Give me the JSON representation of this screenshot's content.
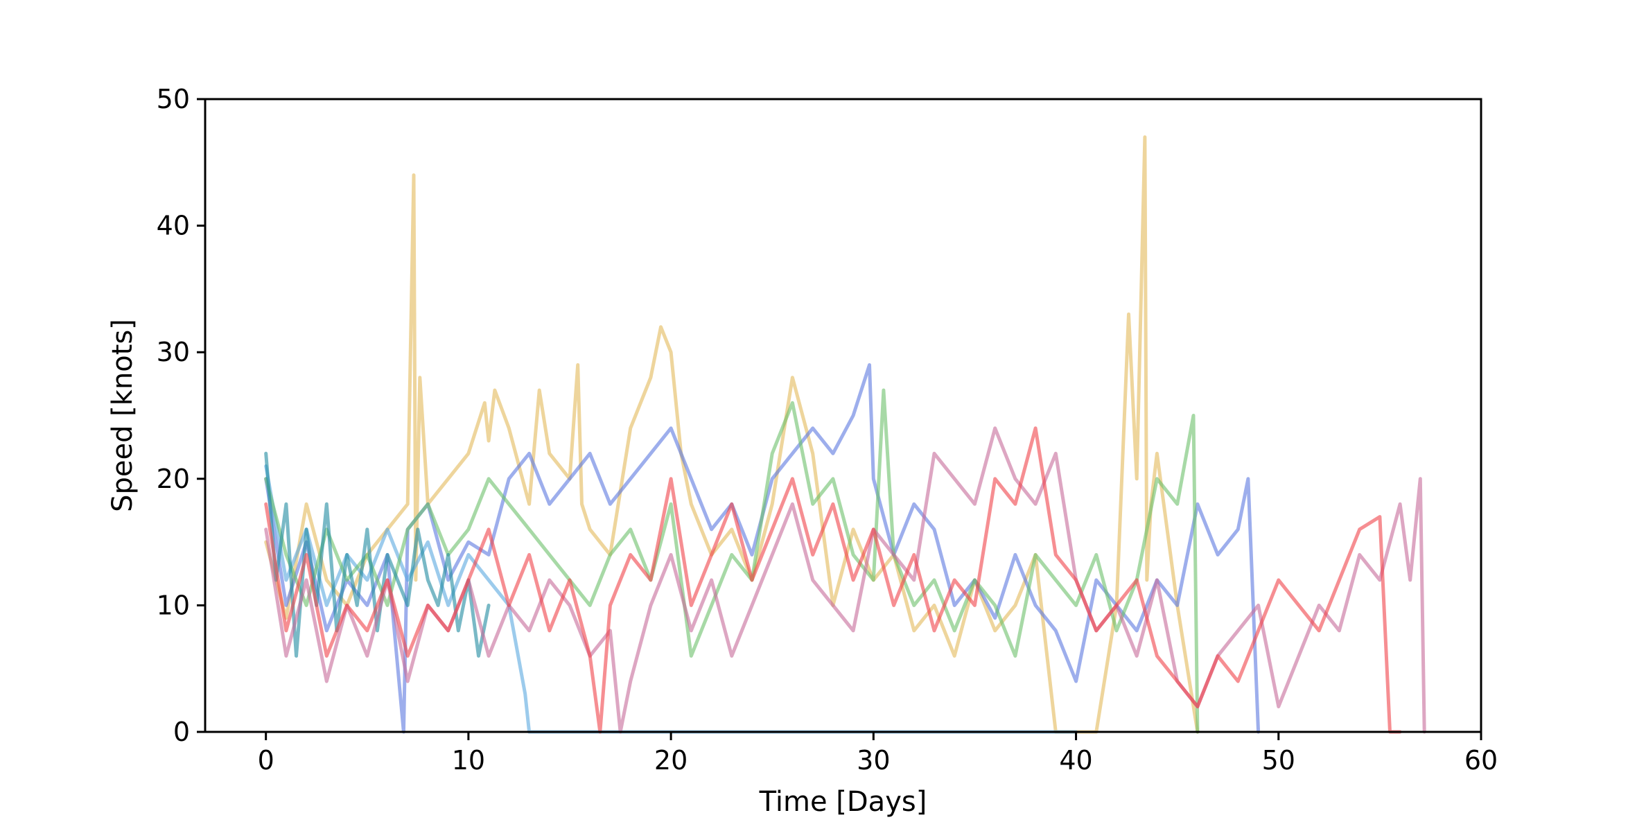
{
  "chart_data": {
    "type": "line",
    "title": "",
    "xlabel": "Time [Days]",
    "ylabel": "Speed [knots]",
    "xlim": [
      -3,
      60
    ],
    "ylim": [
      0,
      50
    ],
    "xticks": [
      0,
      10,
      20,
      30,
      40,
      50,
      60
    ],
    "yticks": [
      0,
      10,
      20,
      30,
      40,
      50
    ],
    "xtick_labels": [
      "0",
      "10",
      "20",
      "30",
      "40",
      "50",
      "60"
    ],
    "ytick_labels": [
      "0",
      "10",
      "20",
      "30",
      "40",
      "50"
    ],
    "grid": false,
    "legend": "none",
    "series": [
      {
        "color": "#e3b95a",
        "x": [
          0,
          1,
          2,
          3,
          4,
          5,
          6,
          7,
          7.3,
          7.4,
          7.6,
          8,
          9,
          10,
          10.8,
          11,
          11.3,
          12,
          13,
          13.5,
          14,
          15,
          15.4,
          15.6,
          16,
          17,
          18,
          19,
          19.5,
          20,
          20.5,
          21,
          22,
          23,
          24,
          25,
          26,
          27,
          28,
          29,
          30,
          31,
          32,
          33,
          34,
          35,
          36,
          37,
          38,
          39,
          40,
          41,
          42,
          42.6,
          43,
          43.4,
          43.5,
          43.7,
          44,
          45,
          46
        ],
        "y": [
          15,
          9,
          18,
          12,
          10,
          14,
          16,
          18,
          44,
          12,
          28,
          18,
          20,
          22,
          26,
          23,
          27,
          24,
          18,
          27,
          22,
          20,
          29,
          18,
          16,
          14,
          24,
          28,
          32,
          30,
          22,
          18,
          14,
          16,
          12,
          18,
          28,
          22,
          10,
          16,
          12,
          14,
          8,
          10,
          6,
          12,
          8,
          10,
          14,
          0,
          0,
          0,
          10,
          33,
          20,
          47,
          12,
          18,
          22,
          10,
          0
        ]
      },
      {
        "color": "#5b78e0",
        "x": [
          0,
          1,
          2,
          3,
          4,
          5,
          6,
          6.8,
          7,
          8,
          9,
          10,
          11,
          12,
          13,
          14,
          15,
          16,
          17,
          18,
          19,
          20,
          21,
          22,
          23,
          24,
          25,
          26,
          27,
          28,
          29,
          29.8,
          30,
          31,
          32,
          33,
          34,
          35,
          36,
          37,
          38,
          39,
          40,
          41,
          42,
          43,
          44,
          45,
          46,
          47,
          48,
          48.5,
          49
        ],
        "y": [
          20,
          10,
          15,
          8,
          12,
          10,
          14,
          0,
          16,
          18,
          12,
          15,
          14,
          20,
          22,
          18,
          20,
          22,
          18,
          20,
          22,
          24,
          20,
          16,
          18,
          14,
          20,
          22,
          24,
          22,
          25,
          29,
          20,
          14,
          18,
          16,
          10,
          12,
          9,
          14,
          10,
          8,
          4,
          12,
          10,
          8,
          12,
          10,
          18,
          14,
          16,
          20,
          0
        ]
      },
      {
        "color": "#5aa9e0",
        "x": [
          0,
          1,
          2,
          3,
          4,
          5,
          6,
          7,
          8,
          9,
          10,
          11,
          12,
          12.8,
          13,
          14,
          20,
          30,
          40
        ],
        "y": [
          21,
          12,
          16,
          10,
          14,
          12,
          16,
          12,
          15,
          10,
          14,
          12,
          10,
          3,
          0,
          0,
          0,
          0,
          0
        ]
      },
      {
        "color": "#6cc06a",
        "x": [
          0,
          1,
          2,
          3,
          4,
          5,
          6,
          7,
          8,
          9,
          10,
          11,
          12,
          13,
          14,
          15,
          16,
          17,
          18,
          19,
          20,
          21,
          22,
          23,
          24,
          25,
          26,
          27,
          28,
          29,
          30,
          30.5,
          31,
          32,
          33,
          34,
          35,
          36,
          37,
          38,
          39,
          40,
          41,
          42,
          43,
          44,
          45,
          45.8,
          46
        ],
        "y": [
          20,
          14,
          10,
          16,
          12,
          14,
          10,
          16,
          18,
          14,
          16,
          20,
          18,
          16,
          14,
          12,
          10,
          14,
          16,
          12,
          18,
          6,
          10,
          14,
          12,
          22,
          26,
          18,
          20,
          14,
          12,
          27,
          14,
          10,
          12,
          8,
          12,
          10,
          6,
          14,
          12,
          10,
          14,
          8,
          12,
          20,
          18,
          25,
          0
        ]
      },
      {
        "color": "#1f8aa0",
        "x": [
          0,
          0.5,
          1,
          1.5,
          2,
          2.5,
          3,
          3.5,
          4,
          4.5,
          5,
          5.5,
          6,
          6.5,
          7,
          7.5,
          8,
          8.5,
          9,
          9.5,
          10,
          10.5,
          11
        ],
        "y": [
          22,
          12,
          18,
          6,
          16,
          10,
          18,
          8,
          14,
          10,
          16,
          8,
          14,
          12,
          10,
          16,
          12,
          10,
          14,
          8,
          12,
          6,
          10
        ]
      },
      {
        "color": "#c76a9a",
        "x": [
          0,
          1,
          2,
          3,
          4,
          5,
          6,
          7,
          8,
          9,
          10,
          11,
          12,
          13,
          14,
          15,
          16,
          17,
          17.5,
          18,
          19,
          20,
          21,
          22,
          23,
          24,
          25,
          26,
          27,
          28,
          29,
          30,
          31,
          32,
          33,
          34,
          35,
          36,
          37,
          38,
          39,
          40,
          41,
          42,
          43,
          44,
          45,
          46,
          47,
          48,
          49,
          50,
          51,
          52,
          53,
          54,
          55,
          56,
          56.5,
          57,
          57.2
        ],
        "y": [
          16,
          6,
          12,
          4,
          10,
          6,
          12,
          4,
          10,
          8,
          12,
          6,
          10,
          8,
          12,
          10,
          6,
          8,
          0,
          4,
          10,
          14,
          8,
          12,
          6,
          10,
          14,
          18,
          12,
          10,
          8,
          16,
          14,
          12,
          22,
          20,
          18,
          24,
          20,
          18,
          22,
          12,
          8,
          10,
          6,
          12,
          4,
          2,
          6,
          8,
          10,
          2,
          6,
          10,
          8,
          14,
          12,
          18,
          12,
          20,
          0
        ]
      },
      {
        "color": "#f0434a",
        "x": [
          0,
          1,
          2,
          3,
          4,
          5,
          6,
          7,
          8,
          9,
          10,
          11,
          12,
          13,
          14,
          15,
          16,
          16.5,
          17,
          18,
          19,
          20,
          21,
          22,
          23,
          24,
          25,
          26,
          27,
          28,
          29,
          30,
          31,
          32,
          33,
          34,
          35,
          36,
          37,
          38,
          39,
          40,
          41,
          42,
          43,
          44,
          45,
          46,
          47,
          48,
          49,
          50,
          51,
          52,
          53,
          54,
          55,
          55.5,
          56
        ],
        "y": [
          18,
          8,
          14,
          6,
          10,
          8,
          12,
          6,
          10,
          8,
          12,
          16,
          10,
          14,
          8,
          12,
          6,
          0,
          10,
          14,
          12,
          20,
          10,
          14,
          18,
          12,
          16,
          20,
          14,
          18,
          12,
          16,
          10,
          14,
          8,
          12,
          10,
          20,
          18,
          24,
          14,
          12,
          8,
          10,
          12,
          6,
          4,
          2,
          6,
          4,
          8,
          12,
          10,
          8,
          12,
          16,
          17,
          0,
          0
        ]
      }
    ]
  }
}
